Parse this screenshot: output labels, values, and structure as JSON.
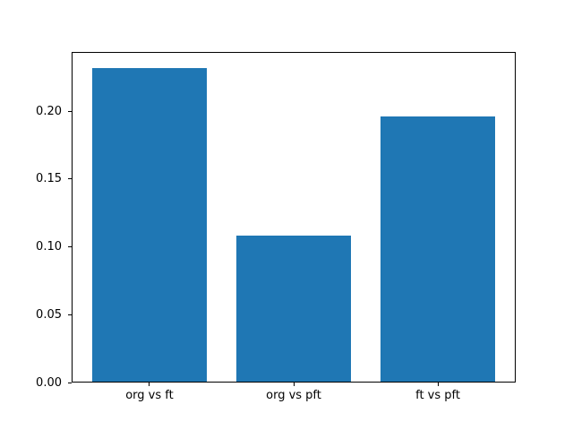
{
  "chart_data": {
    "type": "bar",
    "categories": [
      "org vs ft",
      "org vs pft",
      "ft vs pft"
    ],
    "values": [
      0.232,
      0.108,
      0.196
    ],
    "title": "",
    "xlabel": "",
    "ylabel": "",
    "xlim": [
      -0.54,
      2.54
    ],
    "ylim": [
      0,
      0.2436
    ],
    "yticks": [
      0.0,
      0.05,
      0.1,
      0.15,
      0.2
    ],
    "ytick_labels": [
      "0.00",
      "0.05",
      "0.10",
      "0.15",
      "0.20"
    ],
    "bar_width": 0.8,
    "bar_color": "#1f77b4",
    "axis_color": "#000000",
    "background_color": "#ffffff",
    "grid": false,
    "legend": null
  }
}
